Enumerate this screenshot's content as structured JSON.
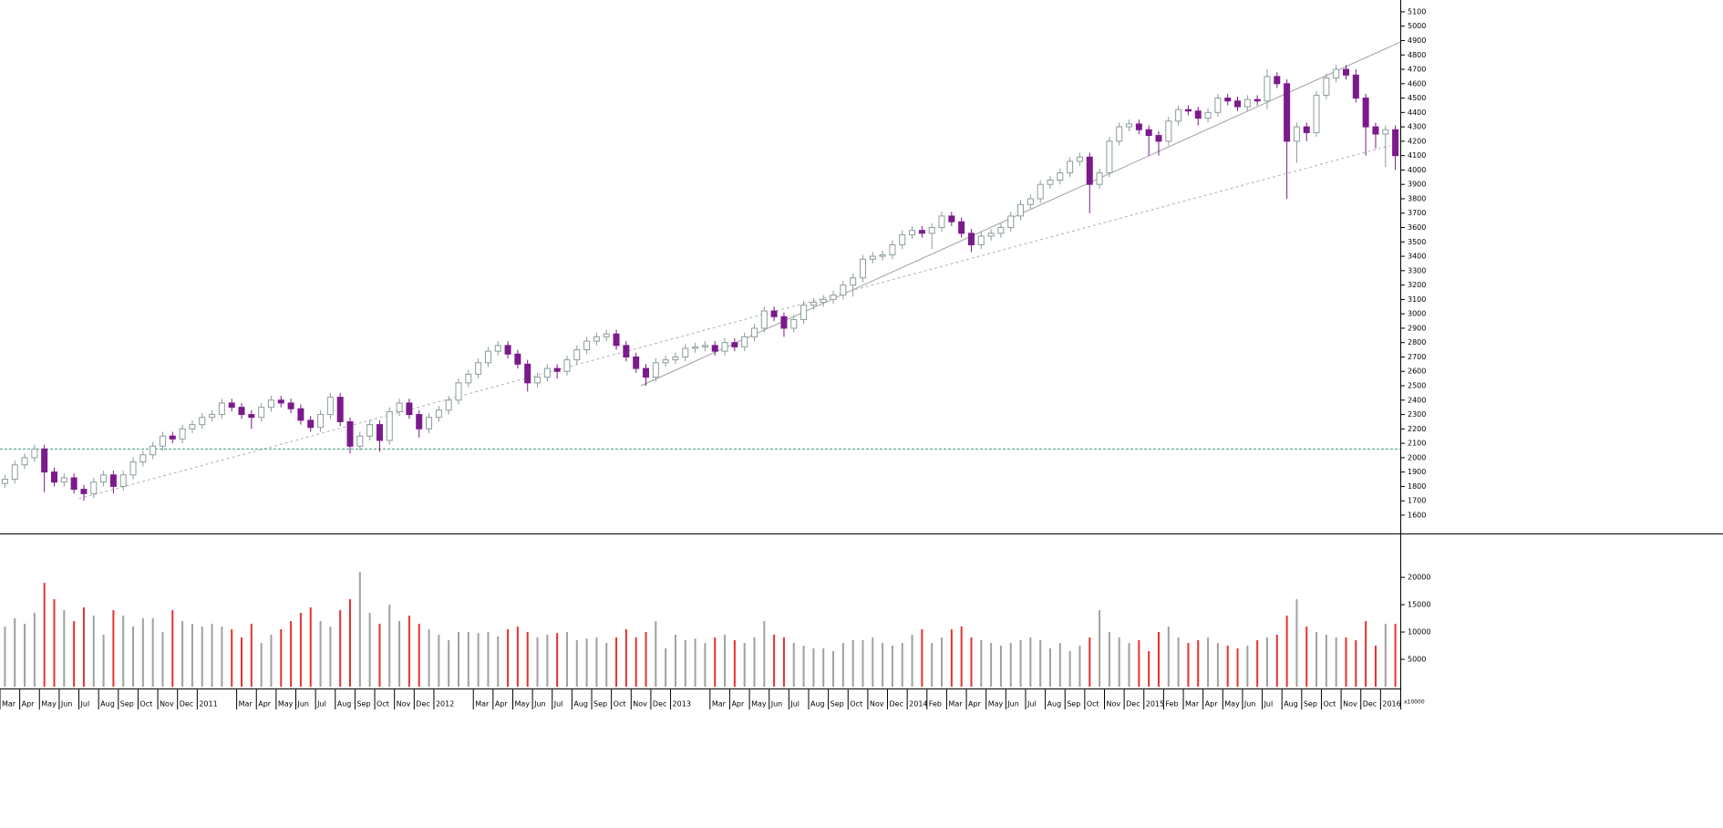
{
  "chart_data": [
    {
      "type": "candlestick",
      "categories": [
        "Mar",
        null,
        "Apr",
        null,
        "May",
        null,
        "Jun",
        null,
        "Jul",
        null,
        "Aug",
        null,
        "Sep",
        null,
        "Oct",
        null,
        "Nov",
        null,
        "Dec",
        null,
        "2011",
        null,
        null,
        null,
        "Mar",
        null,
        "Apr",
        null,
        "May",
        null,
        "Jun",
        null,
        "Jul",
        null,
        "Aug",
        null,
        "Sep",
        null,
        "Oct",
        null,
        "Nov",
        null,
        "Dec",
        null,
        "2012",
        null,
        null,
        null,
        "Mar",
        null,
        "Apr",
        null,
        "May",
        null,
        "Jun",
        null,
        "Jul",
        null,
        "Aug",
        null,
        "Sep",
        null,
        "Oct",
        null,
        "Nov",
        null,
        "Dec",
        null,
        "2013",
        null,
        null,
        null,
        "Mar",
        null,
        "Apr",
        null,
        "May",
        null,
        "Jun",
        null,
        "Jul",
        null,
        "Aug",
        null,
        "Sep",
        null,
        "Oct",
        null,
        "Nov",
        null,
        "Dec",
        null,
        "2014",
        null,
        "Feb",
        null,
        "Mar",
        null,
        "Apr",
        null,
        "May",
        null,
        "Jun",
        null,
        "Jul",
        null,
        "Aug",
        null,
        "Sep",
        null,
        "Oct",
        null,
        "Nov",
        null,
        "Dec",
        null,
        "2015",
        null,
        "Feb",
        null,
        "Mar",
        null,
        "Apr",
        null,
        "May",
        null,
        "Jun",
        null,
        "Jul",
        null,
        "Aug",
        null,
        "Sep",
        null,
        "Oct",
        null,
        "Nov",
        null,
        "Dec",
        null,
        "2016",
        null
      ],
      "open": [
        1820,
        1850,
        1950,
        2000,
        2060,
        1900,
        1830,
        1860,
        1780,
        1750,
        1830,
        1880,
        1800,
        1880,
        1970,
        2020,
        2080,
        2150,
        2130,
        2200,
        2230,
        2280,
        2300,
        2380,
        2350,
        2300,
        2280,
        2350,
        2400,
        2380,
        2340,
        2260,
        2210,
        2300,
        2420,
        2250,
        2080,
        2150,
        2230,
        2120,
        2320,
        2380,
        2300,
        2200,
        2280,
        2330,
        2400,
        2520,
        2580,
        2660,
        2740,
        2780,
        2720,
        2650,
        2520,
        2560,
        2620,
        2600,
        2680,
        2750,
        2810,
        2840,
        2860,
        2780,
        2700,
        2620,
        2560,
        2660,
        2680,
        2700,
        2760,
        2770,
        2780,
        2740,
        2800,
        2770,
        2840,
        2900,
        3020,
        2980,
        2900,
        2960,
        3060,
        3080,
        3100,
        3130,
        3200,
        3250,
        3380,
        3400,
        3410,
        3480,
        3550,
        3580,
        3560,
        3600,
        3680,
        3640,
        3560,
        3480,
        3540,
        3560,
        3600,
        3680,
        3760,
        3800,
        3900,
        3930,
        3980,
        4060,
        4090,
        3900,
        3980,
        4200,
        4300,
        4320,
        4280,
        4240,
        4200,
        4340,
        4420,
        4410,
        4360,
        4400,
        4500,
        4480,
        4440,
        4490,
        4480,
        4650,
        4600,
        4200,
        4300,
        4260,
        4520,
        4640,
        4700,
        4660,
        4500,
        4300,
        4250,
        4280
      ],
      "high": [
        1880,
        1980,
        2030,
        2090,
        2090,
        1930,
        1890,
        1890,
        1810,
        1860,
        1910,
        1910,
        1910,
        2000,
        2050,
        2110,
        2180,
        2180,
        2230,
        2260,
        2310,
        2330,
        2410,
        2410,
        2380,
        2330,
        2380,
        2430,
        2430,
        2410,
        2370,
        2290,
        2330,
        2450,
        2450,
        2280,
        2180,
        2260,
        2260,
        2350,
        2410,
        2410,
        2330,
        2310,
        2360,
        2430,
        2550,
        2610,
        2690,
        2770,
        2810,
        2810,
        2750,
        2680,
        2590,
        2650,
        2650,
        2710,
        2780,
        2840,
        2870,
        2890,
        2890,
        2810,
        2730,
        2650,
        2690,
        2710,
        2730,
        2790,
        2800,
        2810,
        2810,
        2830,
        2830,
        2870,
        2930,
        3050,
        3050,
        3010,
        2990,
        3090,
        3110,
        3130,
        3160,
        3230,
        3280,
        3410,
        3430,
        3440,
        3510,
        3580,
        3610,
        3610,
        3630,
        3710,
        3710,
        3670,
        3590,
        3570,
        3590,
        3630,
        3710,
        3790,
        3830,
        3930,
        3960,
        4010,
        4090,
        4120,
        4120,
        4010,
        4230,
        4330,
        4350,
        4350,
        4310,
        4270,
        4370,
        4450,
        4450,
        4440,
        4430,
        4530,
        4530,
        4510,
        4520,
        4520,
        4700,
        4680,
        4630,
        4330,
        4330,
        4550,
        4670,
        4730,
        4730,
        4700,
        4530,
        4330,
        4310,
        4310
      ],
      "low": [
        1790,
        1820,
        1920,
        1970,
        1760,
        1800,
        1800,
        1750,
        1700,
        1720,
        1800,
        1750,
        1770,
        1850,
        1940,
        1990,
        2050,
        2100,
        2100,
        2170,
        2200,
        2250,
        2270,
        2320,
        2270,
        2200,
        2250,
        2320,
        2350,
        2310,
        2230,
        2180,
        2180,
        2270,
        2220,
        2030,
        2050,
        2120,
        2040,
        2090,
        2290,
        2270,
        2140,
        2170,
        2250,
        2300,
        2370,
        2490,
        2550,
        2630,
        2710,
        2690,
        2620,
        2460,
        2490,
        2530,
        2550,
        2570,
        2650,
        2720,
        2780,
        2810,
        2750,
        2670,
        2590,
        2500,
        2530,
        2630,
        2650,
        2670,
        2730,
        2740,
        2710,
        2710,
        2740,
        2740,
        2810,
        2870,
        2950,
        2840,
        2870,
        2930,
        3030,
        3050,
        3070,
        3100,
        3120,
        3220,
        3350,
        3370,
        3380,
        3450,
        3520,
        3530,
        3450,
        3570,
        3610,
        3530,
        3430,
        3450,
        3510,
        3530,
        3570,
        3650,
        3730,
        3770,
        3870,
        3900,
        3950,
        4030,
        3700,
        3870,
        3950,
        4170,
        4270,
        4250,
        4100,
        4100,
        4170,
        4310,
        4380,
        4310,
        4330,
        4370,
        4450,
        4410,
        4410,
        4450,
        4420,
        4570,
        3800,
        4050,
        4200,
        4230,
        4490,
        4610,
        4630,
        4470,
        4100,
        4150,
        4020,
        4000
      ],
      "close": [
        1850,
        1950,
        2000,
        2060,
        1900,
        1830,
        1860,
        1780,
        1750,
        1830,
        1880,
        1800,
        1880,
        1970,
        2020,
        2080,
        2150,
        2130,
        2200,
        2230,
        2280,
        2300,
        2380,
        2350,
        2300,
        2280,
        2350,
        2400,
        2380,
        2340,
        2260,
        2210,
        2300,
        2420,
        2250,
        2080,
        2150,
        2230,
        2120,
        2320,
        2380,
        2300,
        2200,
        2280,
        2330,
        2400,
        2520,
        2580,
        2660,
        2740,
        2780,
        2720,
        2650,
        2520,
        2560,
        2620,
        2600,
        2680,
        2750,
        2810,
        2840,
        2860,
        2780,
        2700,
        2620,
        2560,
        2660,
        2680,
        2700,
        2760,
        2770,
        2780,
        2740,
        2800,
        2770,
        2840,
        2900,
        3020,
        2980,
        2900,
        2960,
        3060,
        3080,
        3100,
        3130,
        3200,
        3250,
        3380,
        3400,
        3410,
        3480,
        3550,
        3580,
        3560,
        3600,
        3680,
        3640,
        3560,
        3480,
        3540,
        3560,
        3600,
        3680,
        3760,
        3800,
        3900,
        3930,
        3980,
        4060,
        4090,
        3900,
        3980,
        4200,
        4300,
        4320,
        4280,
        4240,
        4200,
        4340,
        4420,
        4410,
        4360,
        4400,
        4500,
        4480,
        4440,
        4490,
        4480,
        4650,
        4600,
        4200,
        4300,
        4260,
        4520,
        4640,
        4700,
        4660,
        4500,
        4300,
        4250,
        4280,
        4100
      ],
      "up_color": "#8c9c9c",
      "down_color": "#7b1a8c",
      "ylim": [
        1473,
        5182
      ],
      "yticks": [
        1600,
        1700,
        1800,
        1900,
        2000,
        2100,
        2200,
        2300,
        2400,
        2500,
        2600,
        2700,
        2800,
        2900,
        3000,
        3100,
        3200,
        3300,
        3400,
        3500,
        3600,
        3700,
        3800,
        3900,
        4000,
        4100,
        4200,
        4300,
        4400,
        4500,
        4600,
        4700,
        4800,
        4900,
        5000,
        5100
      ],
      "hline": {
        "value": 2060,
        "color": "#3aa070"
      },
      "trendlines": [
        {
          "from": [
            65,
            2500
          ],
          "to": [
            142,
            4890
          ],
          "color": "#a0a0a0",
          "dashed": false
        },
        {
          "from": [
            8,
            1715
          ],
          "to": [
            141,
            4170
          ],
          "color": "#b0b0b0",
          "dashed": true
        }
      ]
    },
    {
      "type": "bar",
      "values": [
        11000,
        12500,
        11500,
        13500,
        19000,
        16000,
        14000,
        12000,
        14500,
        13000,
        9500,
        14000,
        13000,
        11000,
        12500,
        12500,
        10000,
        14000,
        12000,
        11500,
        11000,
        11500,
        11000,
        10500,
        9000,
        11500,
        8000,
        9500,
        10500,
        12000,
        13500,
        14500,
        12000,
        11000,
        14000,
        16000,
        21000,
        13500,
        11500,
        15000,
        12000,
        13000,
        11500,
        10500,
        9500,
        8500,
        10000,
        10000,
        9800,
        10000,
        9200,
        10500,
        11000,
        10000,
        9000,
        9500,
        9800,
        10000,
        8500,
        8800,
        9000,
        8000,
        9000,
        10500,
        9000,
        10000,
        12000,
        7000,
        9500,
        8500,
        8800,
        8000,
        9000,
        9500,
        8500,
        8000,
        9000,
        12000,
        9500,
        9000,
        8000,
        7500,
        7000,
        7000,
        6500,
        8000,
        8500,
        8500,
        9000,
        8000,
        7500,
        8000,
        9500,
        10500,
        8000,
        9000,
        10500,
        11000,
        9000,
        8500,
        8000,
        7500,
        8000,
        8500,
        9000,
        8500,
        7000,
        8000,
        6500,
        7500,
        9000,
        14000,
        10000,
        9000,
        8000,
        8500,
        6500,
        10000,
        11000,
        9000,
        8000,
        8500,
        9000,
        8000,
        7500,
        7000,
        7500,
        8500,
        9000,
        9500,
        13000,
        16000,
        11000,
        10000,
        9500,
        9000,
        9000,
        8500,
        12000,
        7500,
        11500,
        11500
      ],
      "up_color": "#a0a0a0",
      "down_color": "#e83030",
      "ylim": [
        0,
        27700
      ],
      "yticks": [
        5000,
        10000,
        15000,
        20000
      ],
      "unit_label": "x10000"
    }
  ]
}
